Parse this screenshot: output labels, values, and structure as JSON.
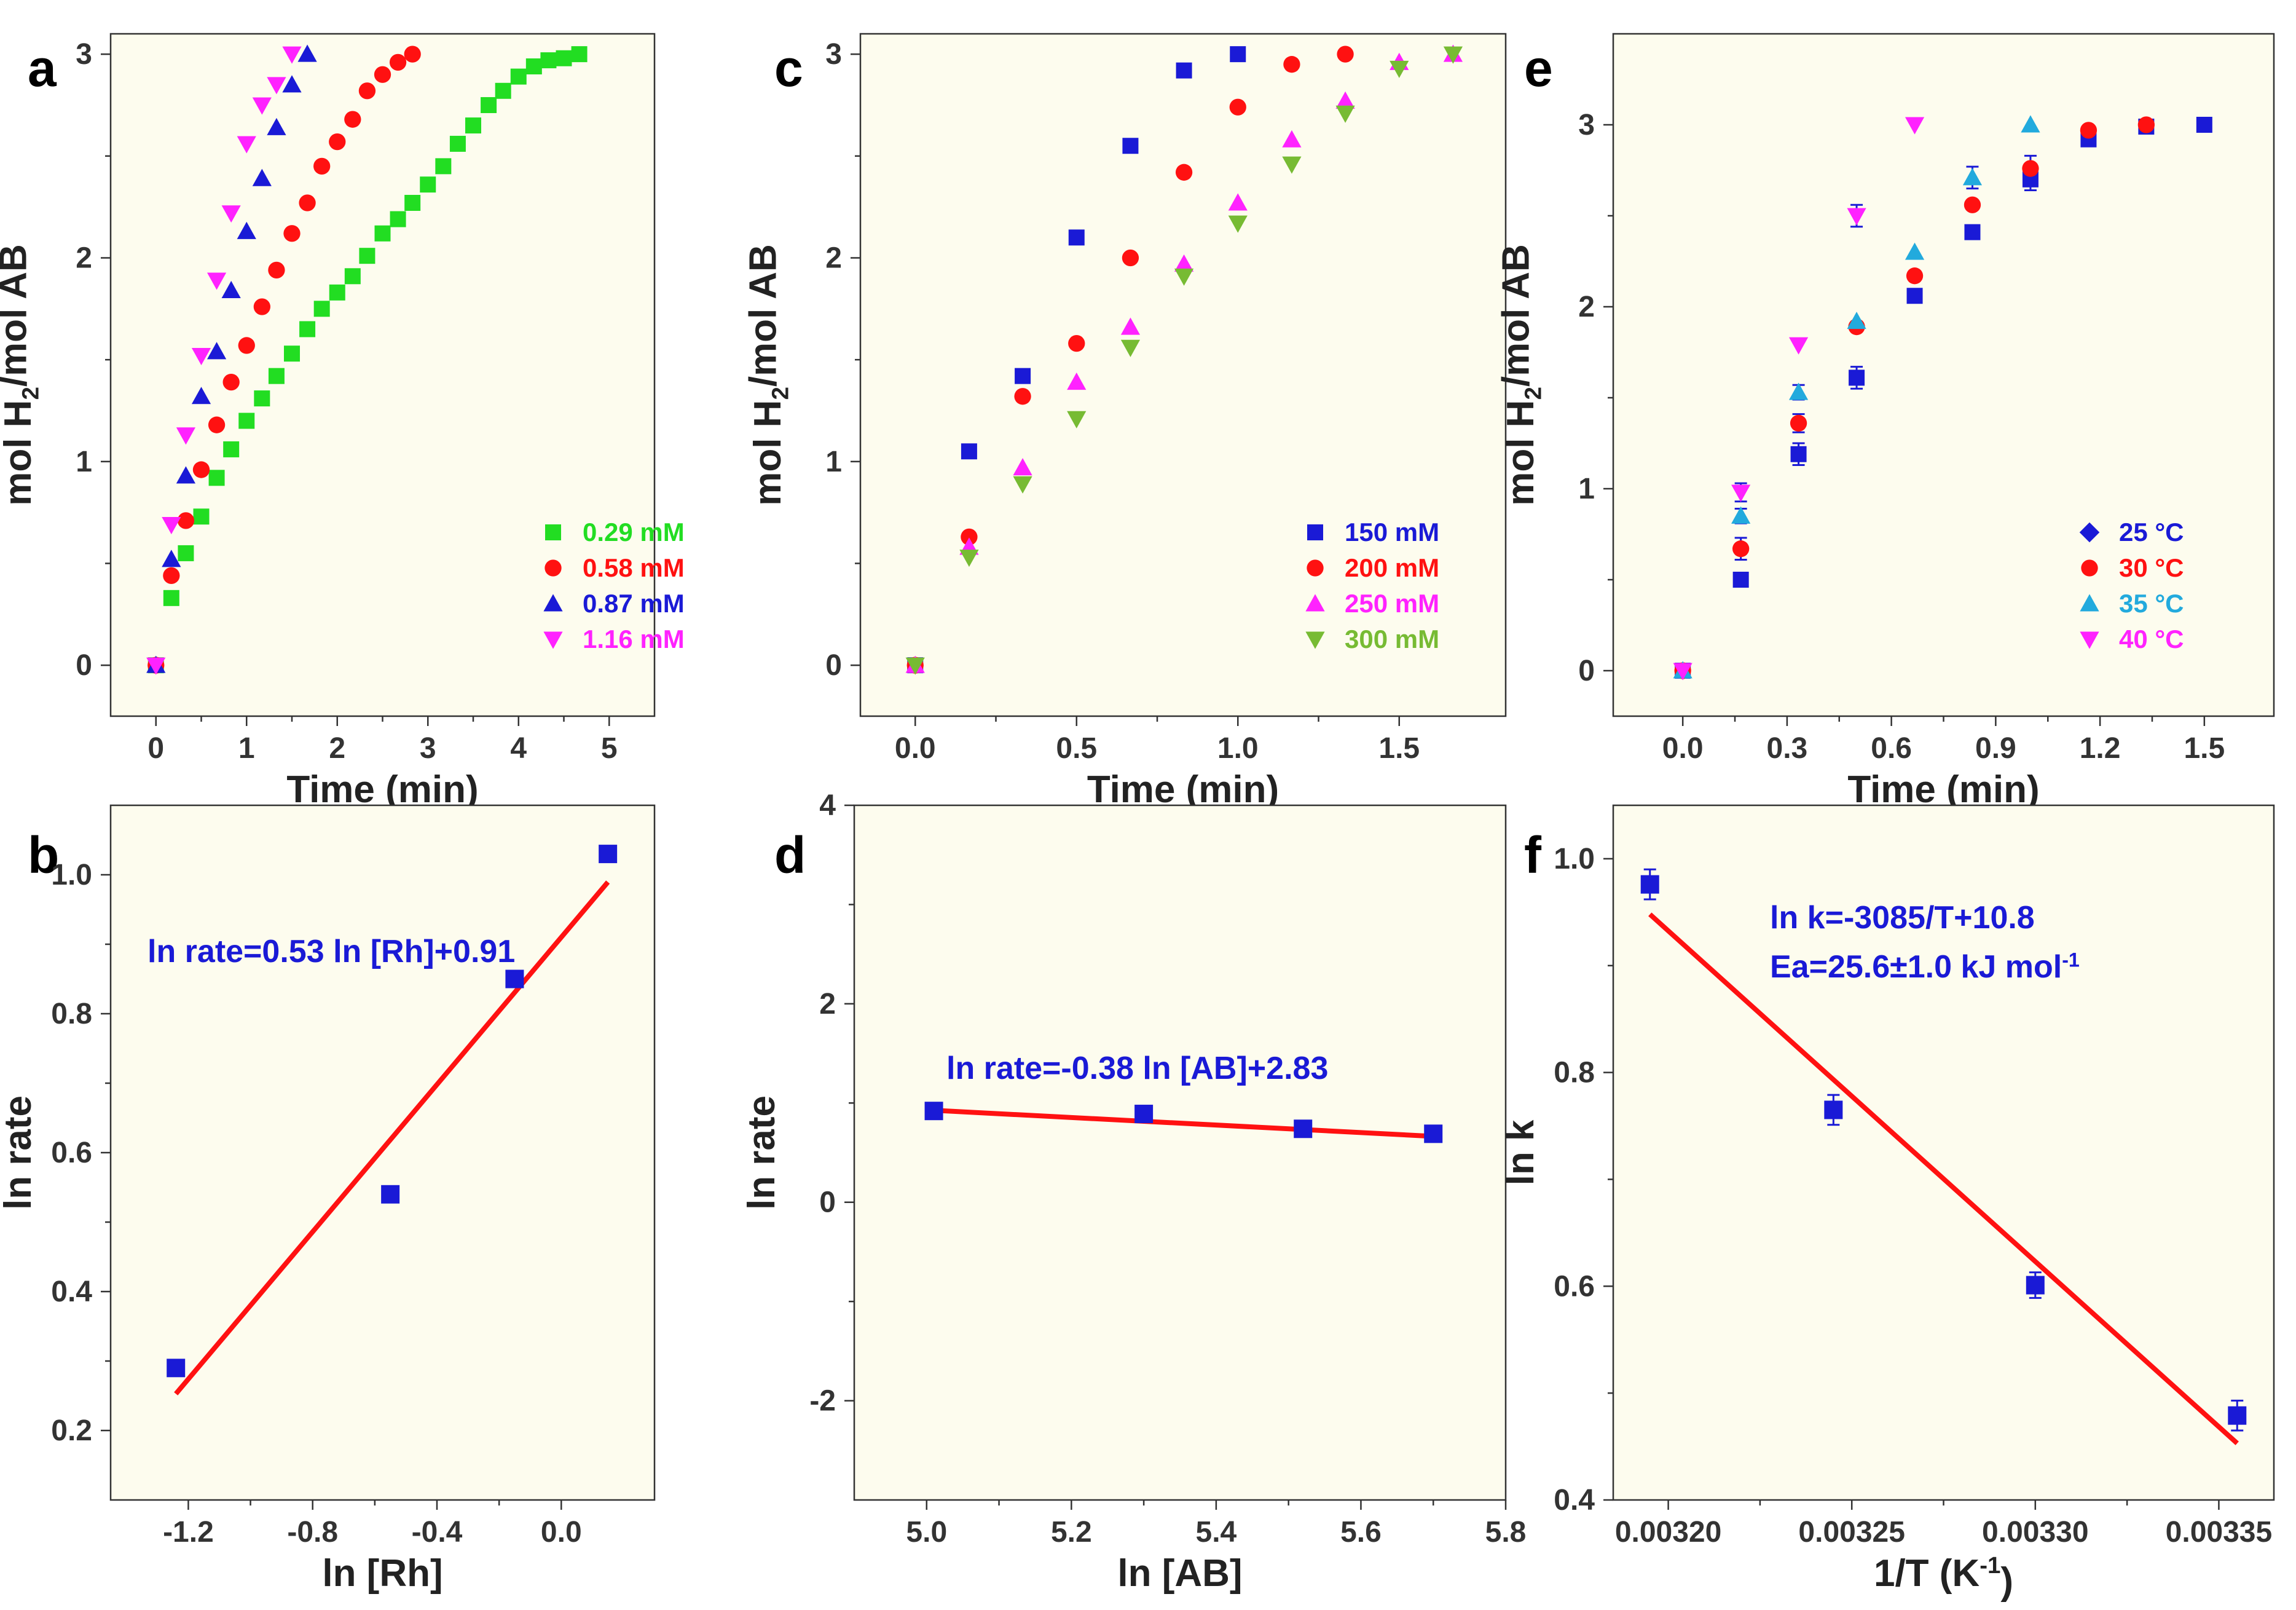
{
  "colors": {
    "green": "#22dd22",
    "red": "#ff1111",
    "blue": "#1a1ad6",
    "magenta": "#ff22ff",
    "olive_green": "#77bb33",
    "cyan": "#22aadd",
    "fit": "#ff1111",
    "text_blue": "#1a1ad6"
  },
  "chart_data": [
    {
      "panel": "a",
      "type": "scatter",
      "xlabel": "Time (min)",
      "ylabel_parts": [
        "mol H",
        "2",
        "/mol AB"
      ],
      "xlim": [
        -0.5,
        5.5
      ],
      "ylim": [
        -0.25,
        3.1
      ],
      "xticks": [
        0,
        1,
        2,
        3,
        4,
        5
      ],
      "xtick_labels": [
        "0",
        "1",
        "2",
        "3",
        "4",
        "5"
      ],
      "yticks": [
        0,
        1,
        2,
        3
      ],
      "ytick_labels": [
        "0",
        "1",
        "2",
        "3"
      ],
      "legend_position": "lower-right",
      "series": [
        {
          "name": "0.29 mM",
          "marker": "square",
          "color": "#22dd22",
          "x": [
            0,
            0.17,
            0.33,
            0.5,
            0.67,
            0.83,
            1.0,
            1.17,
            1.33,
            1.5,
            1.67,
            1.83,
            2.0,
            2.17,
            2.33,
            2.5,
            2.67,
            2.83,
            3.0,
            3.17,
            3.33,
            3.5,
            3.67,
            3.83,
            4.0,
            4.17,
            4.33,
            4.5,
            4.67
          ],
          "y": [
            0,
            0.33,
            0.55,
            0.73,
            0.92,
            1.06,
            1.2,
            1.31,
            1.42,
            1.53,
            1.65,
            1.75,
            1.83,
            1.91,
            2.01,
            2.12,
            2.19,
            2.27,
            2.36,
            2.45,
            2.56,
            2.65,
            2.75,
            2.82,
            2.89,
            2.94,
            2.97,
            2.98,
            3.0
          ]
        },
        {
          "name": "0.58 mM",
          "marker": "circle",
          "color": "#ff1111",
          "x": [
            0,
            0.17,
            0.33,
            0.5,
            0.67,
            0.83,
            1.0,
            1.17,
            1.33,
            1.5,
            1.67,
            1.83,
            2.0,
            2.17,
            2.33,
            2.5,
            2.67,
            2.83
          ],
          "y": [
            0,
            0.44,
            0.71,
            0.96,
            1.18,
            1.39,
            1.57,
            1.76,
            1.94,
            2.12,
            2.27,
            2.45,
            2.57,
            2.68,
            2.82,
            2.9,
            2.96,
            3.0
          ]
        },
        {
          "name": "0.87 mM",
          "marker": "triangle-up",
          "color": "#1a1ad6",
          "x": [
            0,
            0.17,
            0.33,
            0.5,
            0.67,
            0.83,
            1.0,
            1.17,
            1.33,
            1.5,
            1.67
          ],
          "y": [
            0,
            0.52,
            0.93,
            1.32,
            1.54,
            1.84,
            2.13,
            2.39,
            2.64,
            2.85,
            3.0
          ]
        },
        {
          "name": "1.16 mM",
          "marker": "triangle-down",
          "color": "#ff22ff",
          "x": [
            0,
            0.17,
            0.33,
            0.5,
            0.67,
            0.83,
            1.0,
            1.17,
            1.33,
            1.5
          ],
          "y": [
            0,
            0.69,
            1.13,
            1.52,
            1.89,
            2.22,
            2.56,
            2.75,
            2.85,
            3.0
          ]
        }
      ]
    },
    {
      "panel": "c",
      "type": "scatter",
      "xlabel": "Time (min)",
      "ylabel_parts": [
        "mol H",
        "2",
        "/mol AB"
      ],
      "xlim": [
        -0.17,
        1.83
      ],
      "ylim": [
        -0.25,
        3.1
      ],
      "xticks": [
        0,
        0.5,
        1.0,
        1.5
      ],
      "xtick_labels": [
        "0.0",
        "0.5",
        "1.0",
        "1.5"
      ],
      "yticks": [
        0,
        1,
        2,
        3
      ],
      "ytick_labels": [
        "0",
        "1",
        "2",
        "3"
      ],
      "legend_position": "lower-right",
      "series": [
        {
          "name": "150 mM",
          "marker": "square",
          "color": "#1a1ad6",
          "x": [
            0,
            0.167,
            0.333,
            0.5,
            0.667,
            0.833,
            1.0
          ],
          "y": [
            0,
            1.05,
            1.42,
            2.1,
            2.55,
            2.92,
            3.0
          ]
        },
        {
          "name": "200 mM",
          "marker": "circle",
          "color": "#ff1111",
          "x": [
            0,
            0.167,
            0.333,
            0.5,
            0.667,
            0.833,
            1.0,
            1.167,
            1.333
          ],
          "y": [
            0,
            0.63,
            1.32,
            1.58,
            2.0,
            2.42,
            2.74,
            2.95,
            3.0
          ]
        },
        {
          "name": "250 mM",
          "marker": "triangle-up",
          "color": "#ff22ff",
          "x": [
            0,
            0.167,
            0.333,
            0.5,
            0.667,
            0.833,
            1.0,
            1.167,
            1.333,
            1.5,
            1.667
          ],
          "y": [
            0,
            0.58,
            0.97,
            1.39,
            1.66,
            1.97,
            2.27,
            2.58,
            2.77,
            2.96,
            3.0
          ]
        },
        {
          "name": "300 mM",
          "marker": "triangle-down",
          "color": "#77bb33",
          "x": [
            0,
            0.167,
            0.333,
            0.5,
            0.667,
            0.833,
            1.0,
            1.167,
            1.333,
            1.5,
            1.667
          ],
          "y": [
            0,
            0.53,
            0.89,
            1.21,
            1.56,
            1.91,
            2.17,
            2.46,
            2.71,
            2.93,
            3.0
          ]
        }
      ]
    },
    {
      "panel": "e",
      "type": "scatter",
      "xlabel": "Time (min)",
      "ylabel_parts": [
        "mol H",
        "2",
        "/mol AB"
      ],
      "xlim": [
        -0.2,
        1.7
      ],
      "ylim": [
        -0.25,
        3.5
      ],
      "xticks": [
        0,
        0.3,
        0.6,
        0.9,
        1.2,
        1.5
      ],
      "xtick_labels": [
        "0.0",
        "0.3",
        "0.6",
        "0.9",
        "1.2",
        "1.5"
      ],
      "yticks": [
        0,
        1,
        2,
        3
      ],
      "ytick_labels": [
        "0",
        "1",
        "2",
        "3"
      ],
      "legend_position": "lower-right",
      "legend_marker_override": [
        "diamond",
        "circle",
        "triangle-up",
        "triangle-down"
      ],
      "series": [
        {
          "name": "25 °C",
          "marker": "square",
          "color": "#1a1ad6",
          "x": [
            0,
            0.167,
            0.333,
            0.5,
            0.667,
            0.833,
            1.0,
            1.167,
            1.333,
            1.5
          ],
          "y": [
            0,
            0.5,
            1.19,
            1.61,
            2.06,
            2.41,
            2.7,
            2.92,
            2.99,
            3.0
          ],
          "err": [
            0,
            0,
            0.06,
            0.06,
            0,
            0,
            0.06,
            0,
            0,
            0
          ]
        },
        {
          "name": "30 °C",
          "marker": "circle",
          "color": "#ff1111",
          "x": [
            0,
            0.167,
            0.333,
            0.5,
            0.667,
            0.833,
            1.0,
            1.167,
            1.333
          ],
          "y": [
            0,
            0.67,
            1.36,
            1.89,
            2.17,
            2.56,
            2.76,
            2.97,
            3.0
          ],
          "err": [
            0,
            0.06,
            0.05,
            0,
            0,
            0,
            0.07,
            0,
            0
          ]
        },
        {
          "name": "35 °C",
          "marker": "triangle-up",
          "color": "#22aadd",
          "x": [
            0,
            0.167,
            0.333,
            0.5,
            0.667,
            0.833,
            1.0
          ],
          "y": [
            0,
            0.85,
            1.53,
            1.92,
            2.3,
            2.71,
            3.0
          ],
          "err": [
            0,
            0.04,
            0.04,
            0,
            0,
            0.06,
            0
          ]
        },
        {
          "name": "40 °C",
          "marker": "triangle-down",
          "color": "#ff22ff",
          "x": [
            0,
            0.167,
            0.333,
            0.5,
            0.667
          ],
          "y": [
            0,
            0.98,
            1.79,
            2.5,
            3.0
          ],
          "err": [
            0,
            0.05,
            0,
            0.06,
            0
          ]
        }
      ]
    },
    {
      "panel": "b",
      "type": "scatter",
      "xlabel": "ln [Rh]",
      "ylabel": "ln rate",
      "xlim": [
        -1.45,
        0.3
      ],
      "ylim": [
        0.1,
        1.1
      ],
      "xticks": [
        -1.2,
        -0.8,
        -0.4,
        0.0
      ],
      "xtick_labels": [
        "-1.2",
        "-0.8",
        "-0.4",
        "0.0"
      ],
      "yticks": [
        0.2,
        0.4,
        0.6,
        0.8,
        1.0
      ],
      "ytick_labels": [
        "0.2",
        "0.4",
        "0.6",
        "0.8",
        "1.0"
      ],
      "equation": "ln rate=0.53 ln [Rh]+0.91",
      "series": [
        {
          "name": "data",
          "marker": "square",
          "color": "#1a1ad6",
          "x": [
            -1.24,
            -0.55,
            -0.15,
            0.15
          ],
          "y": [
            0.29,
            0.54,
            0.85,
            1.03
          ]
        }
      ],
      "fit": {
        "slope": 0.53,
        "intercept": 0.91,
        "x_range": [
          -1.24,
          0.15
        ]
      }
    },
    {
      "panel": "d",
      "type": "scatter",
      "xlabel": "ln [AB]",
      "ylabel": "ln rate",
      "xlim": [
        4.9,
        5.8
      ],
      "ylim": [
        -3,
        4
      ],
      "xticks": [
        5.0,
        5.2,
        5.4,
        5.6,
        5.8
      ],
      "xtick_labels": [
        "5.0",
        "5.2",
        "5.4",
        "5.6",
        "5.8"
      ],
      "yticks": [
        -2,
        0,
        2,
        4
      ],
      "ytick_labels": [
        "-2",
        "0",
        "2",
        "4"
      ],
      "equation": "ln rate=-0.38 ln [AB]+2.83",
      "series": [
        {
          "name": "data",
          "marker": "square",
          "color": "#1a1ad6",
          "x": [
            5.01,
            5.3,
            5.52,
            5.7
          ],
          "y": [
            0.92,
            0.89,
            0.74,
            0.69
          ]
        }
      ],
      "fit": {
        "slope": -0.38,
        "intercept": 2.83,
        "x_range": [
          5.01,
          5.7
        ]
      }
    },
    {
      "panel": "f",
      "type": "scatter",
      "xlabel_parts": [
        "1/T (K",
        "-1",
        ")"
      ],
      "ylabel": "ln k",
      "xlim": [
        0.003185,
        0.003365
      ],
      "ylim": [
        0.4,
        1.05
      ],
      "xticks": [
        0.0032,
        0.00325,
        0.0033,
        0.00335
      ],
      "xtick_labels": [
        "0.00320",
        "0.00325",
        "0.00330",
        "0.00335"
      ],
      "yticks": [
        0.4,
        0.6,
        0.8,
        1.0
      ],
      "ytick_labels": [
        "0.4",
        "0.6",
        "0.8",
        "1.0"
      ],
      "equation": "ln k=-3085/T+10.8",
      "ea_parts": [
        "Ea=25.6±1.0 kJ mol",
        "-1"
      ],
      "series": [
        {
          "name": "data",
          "marker": "square",
          "color": "#1a1ad6",
          "x": [
            0.003195,
            0.003245,
            0.0033,
            0.003355
          ],
          "y": [
            0.976,
            0.765,
            0.601,
            0.479
          ],
          "err": [
            0.014,
            0.014,
            0.012,
            0.014
          ]
        }
      ],
      "fit": {
        "points": [
          [
            0.003195,
            0.948
          ],
          [
            0.003355,
            0.453
          ]
        ]
      }
    }
  ]
}
